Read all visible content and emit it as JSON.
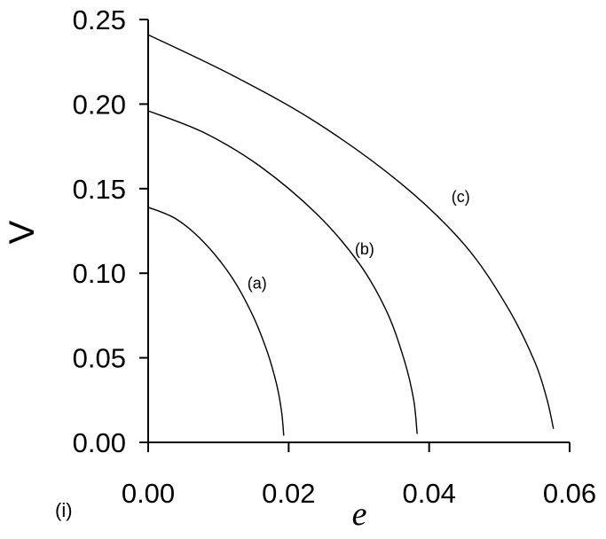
{
  "chart_data": {
    "type": "line",
    "xlabel": "e",
    "ylabel": "V",
    "panel_label": "(i)",
    "xlim": [
      0,
      0.06
    ],
    "ylim": [
      0,
      0.25
    ],
    "x_ticks": [
      "0.00",
      "0.02",
      "0.04",
      "0.06"
    ],
    "y_ticks": [
      "0.00",
      "0.05",
      "0.10",
      "0.15",
      "0.20",
      "0.25"
    ],
    "grid": false,
    "series": [
      {
        "name": "(a)",
        "points": [
          [
            0.0,
            0.139
          ],
          [
            0.004,
            0.132
          ],
          [
            0.008,
            0.118
          ],
          [
            0.012,
            0.097
          ],
          [
            0.015,
            0.074
          ],
          [
            0.017,
            0.053
          ],
          [
            0.0183,
            0.034
          ],
          [
            0.019,
            0.018
          ],
          [
            0.0193,
            0.004
          ]
        ],
        "label_at": [
          0.0155,
          0.091
        ]
      },
      {
        "name": "(b)",
        "points": [
          [
            0.0,
            0.196
          ],
          [
            0.008,
            0.183
          ],
          [
            0.016,
            0.163
          ],
          [
            0.024,
            0.135
          ],
          [
            0.03,
            0.106
          ],
          [
            0.034,
            0.077
          ],
          [
            0.0365,
            0.048
          ],
          [
            0.0378,
            0.025
          ],
          [
            0.0383,
            0.005
          ]
        ],
        "label_at": [
          0.0308,
          0.111
        ]
      },
      {
        "name": "(c)",
        "points": [
          [
            0.0,
            0.241
          ],
          [
            0.012,
            0.217
          ],
          [
            0.024,
            0.189
          ],
          [
            0.036,
            0.153
          ],
          [
            0.045,
            0.117
          ],
          [
            0.051,
            0.081
          ],
          [
            0.055,
            0.048
          ],
          [
            0.0568,
            0.025
          ],
          [
            0.0577,
            0.008
          ]
        ],
        "label_at": [
          0.0445,
          0.142
        ]
      }
    ]
  }
}
